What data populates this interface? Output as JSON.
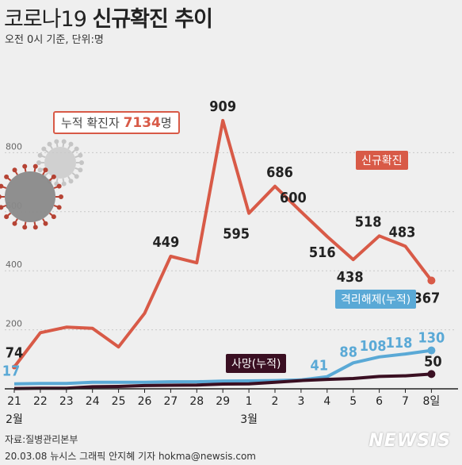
{
  "header": {
    "title_a": "코로나19",
    "title_b": "신규확진 추이",
    "subtitle": "오전 0시 기준, 단위:명"
  },
  "annotations": {
    "cumulative_prefix": "누적 확진자",
    "cumulative_value": "7134",
    "cumulative_suffix": "명"
  },
  "footer": {
    "source": "자료:질병관리본부",
    "credit": "20.03.08 뉴시스 그래픽 안지혜 기자 hokma@newsis.com",
    "logo": "NEWSIS"
  },
  "colors": {
    "new_cases": "#d85a47",
    "recovered": "#5aa9d6",
    "deaths": "#3a0f22",
    "background": "#efefef"
  },
  "chart_data": {
    "type": "line",
    "categories": [
      "21",
      "22",
      "23",
      "24",
      "25",
      "26",
      "27",
      "28",
      "29",
      "1",
      "2",
      "3",
      "4",
      "5",
      "6",
      "7",
      "8일"
    ],
    "month_labels": [
      {
        "label": "2월",
        "index": 0
      },
      {
        "label": "3월",
        "index": 9
      }
    ],
    "yticks": [
      200,
      400,
      600,
      800
    ],
    "ylim": [
      0,
      1000
    ],
    "grid": true,
    "series": [
      {
        "name": "신규확진",
        "color": "#d85a47",
        "values": [
          74,
          190,
          209,
          205,
          142,
          256,
          449,
          427,
          909,
          595,
          686,
          600,
          516,
          438,
          518,
          483,
          367
        ],
        "labels": {
          "0": "74",
          "6": "449",
          "8": "909",
          "9": "595",
          "10": "686",
          "11": "600",
          "12": "516",
          "13": "438",
          "14": "518",
          "15": "483",
          "16": "367"
        }
      },
      {
        "name": "격리해제(누적)",
        "color": "#5aa9d6",
        "values": [
          17,
          18,
          18,
          22,
          22,
          22,
          24,
          24,
          26,
          27,
          28,
          30,
          41,
          88,
          108,
          118,
          130
        ],
        "labels": {
          "0": "17",
          "12": "41",
          "13": "88",
          "14": "108",
          "15": "118",
          "16": "130"
        }
      },
      {
        "name": "사망(누적)",
        "color": "#3a0f22",
        "values": [
          1,
          2,
          2,
          7,
          8,
          11,
          12,
          13,
          16,
          17,
          22,
          28,
          32,
          35,
          42,
          44,
          50
        ],
        "labels": {
          "16": "50"
        }
      }
    ]
  }
}
